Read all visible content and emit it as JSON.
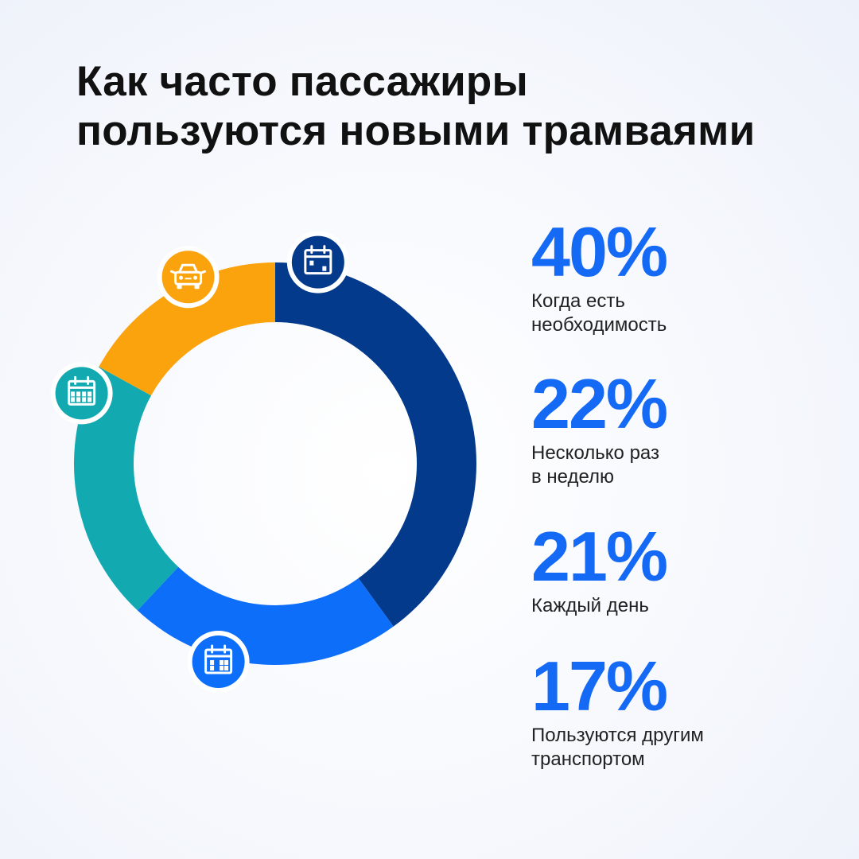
{
  "chart_data": {
    "type": "pie",
    "title": [
      "Как часто пассажиры",
      "пользуются новыми трамваями"
    ],
    "unit": "%",
    "slices": [
      {
        "label": [
          "Когда есть",
          "необходимость"
        ],
        "value": 40,
        "display": "40%",
        "color": "#043a8c",
        "icon": "calendar-weekly-icon"
      },
      {
        "label": [
          "Несколько раз",
          "в неделю"
        ],
        "value": 22,
        "display": "22%",
        "color": "#0d6ef9",
        "icon": "calendar-few-days-icon"
      },
      {
        "label": [
          "Каждый день"
        ],
        "value": 21,
        "display": "21%",
        "color": "#12aab0",
        "icon": "calendar-daily-icon"
      },
      {
        "label": [
          "Пользуются другим",
          "транспортом"
        ],
        "value": 17,
        "display": "17%",
        "color": "#fba30d",
        "icon": "car-icon"
      }
    ]
  },
  "colors": {
    "value_text": "#1469f5",
    "label_text": "#222222",
    "title_text": "#111111"
  }
}
